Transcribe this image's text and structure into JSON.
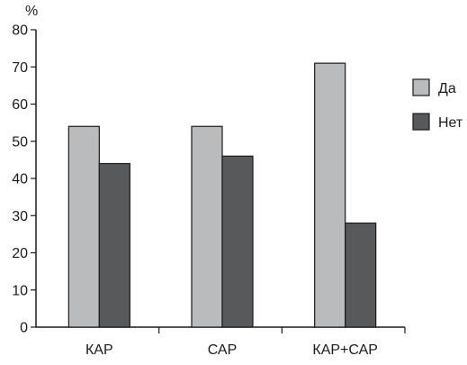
{
  "chart_data": {
    "type": "bar",
    "title": "",
    "xlabel": "",
    "ylabel": "",
    "unit_label": "%",
    "categories": [
      "КАР",
      "САР",
      "КАР+САР"
    ],
    "series": [
      {
        "name": "Да",
        "values": [
          54,
          54,
          71
        ],
        "color": "#b9bbbc"
      },
      {
        "name": "Нет",
        "values": [
          44,
          46,
          28
        ],
        "color": "#58595b"
      }
    ],
    "ylim": [
      0,
      80
    ],
    "yticks": [
      0,
      10,
      20,
      30,
      40,
      50,
      60,
      70,
      80
    ],
    "grid": false,
    "legend_position": "right"
  }
}
